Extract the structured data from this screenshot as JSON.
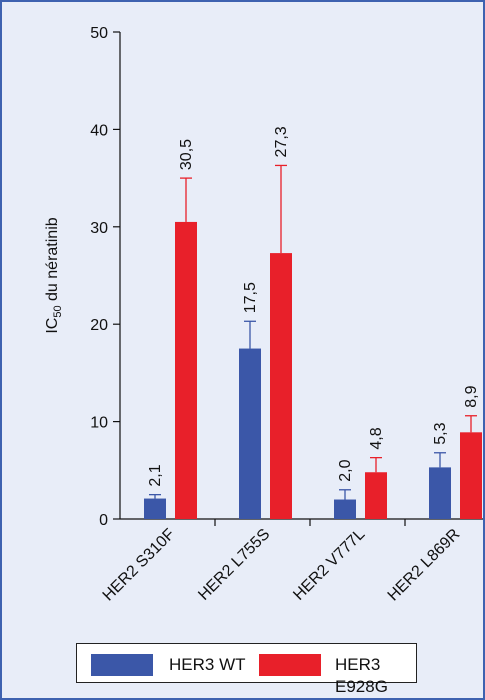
{
  "chart_data": {
    "type": "bar",
    "ylabel": "IC",
    "ylabel_sub": "50",
    "ylabel_rest": " du nératinib",
    "categories": [
      "HER2 S310F",
      "HER2 L755S",
      "HER2 V777L",
      "HER2 L869R"
    ],
    "ylim": [
      0,
      50
    ],
    "yticks": [
      0,
      10,
      20,
      30,
      40,
      50
    ],
    "series": [
      {
        "name": "HER3 WT",
        "color": "#3b57a8",
        "values": [
          2.1,
          17.5,
          2.0,
          5.3
        ],
        "labels": [
          "2,1",
          "17,5",
          "2,0",
          "5,3"
        ],
        "error_upper": [
          2.5,
          20.3,
          3.0,
          6.8
        ]
      },
      {
        "name": "HER3 E928G",
        "color": "#e8202a",
        "values": [
          30.5,
          27.3,
          4.8,
          8.9
        ],
        "labels": [
          "30,5",
          "27,3",
          "4,8",
          "8,9"
        ],
        "error_upper": [
          35.0,
          36.3,
          6.3,
          10.6
        ]
      }
    ],
    "grid": false,
    "legend_position": "bottom"
  },
  "legend": {
    "wt_label": "HER3 WT",
    "mut_label": "HER3 E928G"
  }
}
